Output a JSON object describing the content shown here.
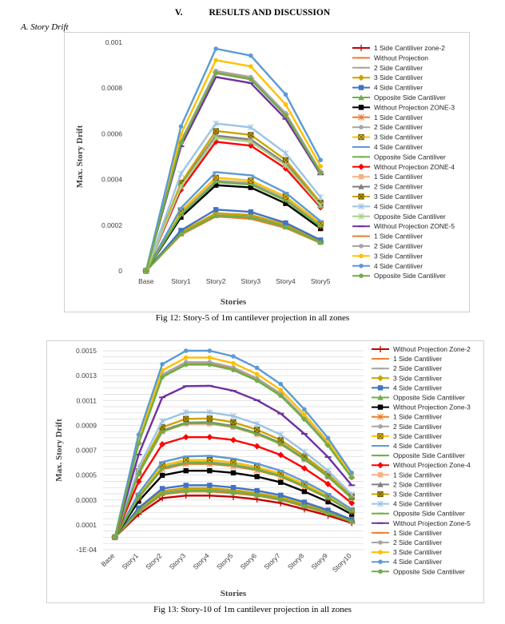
{
  "header": {
    "section_number": "V.",
    "section_title": "RESULTS AND DISCUSSION",
    "subsection": "A.   Story Drift"
  },
  "captions": {
    "fig12": "Fig 12: Story-5 of 1m cantilever projection in all zones",
    "fig13": "Fig 13: Story-10 of 1m cantilever projection in all zones"
  },
  "chart_data": [
    {
      "type": "line",
      "xlabel": "Stories",
      "ylabel": "Max. Story Drift",
      "categories": [
        "Base",
        "Story1",
        "Story2",
        "Story3",
        "Story4",
        "Story5"
      ],
      "yticks": [
        "0",
        "0.0002",
        "0.0004",
        "0.0006",
        "0.0008",
        "0.001"
      ],
      "ylim": [
        0,
        0.001
      ],
      "grid": false,
      "legend_position": "right",
      "series": [
        {
          "name": "1 Side Cantiliver zone-2",
          "color": "#c00000",
          "marker": "plus",
          "values": [
            0,
            0.000165,
            0.000248,
            0.000238,
            0.000195,
            0.000128
          ]
        },
        {
          "name": "Without Projection",
          "color": "#ed7d31",
          "marker": "dash",
          "values": [
            0,
            0.000158,
            0.000238,
            0.000228,
            0.000188,
            0.000122
          ]
        },
        {
          "name": "2 Side Cantiliver",
          "color": "#a5a5a5",
          "marker": "dash",
          "values": [
            0,
            0.000165,
            0.000245,
            0.000236,
            0.000195,
            0.000127
          ]
        },
        {
          "name": "3 Side Cantiliver",
          "color": "#c9a400",
          "marker": "diamond",
          "values": [
            0,
            0.00017,
            0.000252,
            0.000245,
            0.000202,
            0.000131
          ]
        },
        {
          "name": "4 Side Cantiliver",
          "color": "#4472c4",
          "marker": "square",
          "values": [
            0,
            0.000177,
            0.000268,
            0.000258,
            0.00021,
            0.000135
          ]
        },
        {
          "name": "Opposite Side Cantiliver",
          "color": "#70ad47",
          "marker": "triangle",
          "values": [
            0,
            0.000162,
            0.000242,
            0.000234,
            0.000193,
            0.000125
          ]
        },
        {
          "name": "Without Projection ZONE-3",
          "color": "#000000",
          "marker": "square",
          "values": [
            0,
            0.000235,
            0.000375,
            0.000365,
            0.000295,
            0.000185
          ]
        },
        {
          "name": "1 Side Cantiliver",
          "color": "#ed7d31",
          "marker": "star",
          "values": [
            0,
            0.000248,
            0.000395,
            0.000385,
            0.000312,
            0.000197
          ]
        },
        {
          "name": "2 Side Cantiliver",
          "color": "#a5a5a5",
          "marker": "circle",
          "values": [
            0,
            0.000252,
            0.000395,
            0.000385,
            0.000315,
            0.0002
          ]
        },
        {
          "name": "3 Side Cantiliver",
          "color": "#ffc000",
          "marker": "boxx",
          "values": [
            0,
            0.000262,
            0.000408,
            0.000395,
            0.000325,
            0.000208
          ]
        },
        {
          "name": "4 Side Cantiliver",
          "color": "#5b9bd5",
          "marker": "dash",
          "values": [
            0,
            0.000275,
            0.000432,
            0.000418,
            0.000342,
            0.000218
          ]
        },
        {
          "name": "Opposite Side Cantiliver",
          "color": "#70ad47",
          "marker": "dash",
          "values": [
            0,
            0.000245,
            0.000388,
            0.000378,
            0.000308,
            0.000195
          ]
        },
        {
          "name": "Without Projection ZONE-4",
          "color": "#ff0000",
          "marker": "diamond",
          "values": [
            0,
            0.000355,
            0.000565,
            0.000548,
            0.000448,
            0.000278
          ]
        },
        {
          "name": "1 Side Cantiliver",
          "color": "#f4b183",
          "marker": "square",
          "values": [
            0,
            0.000372,
            0.000588,
            0.00057,
            0.000465,
            0.000289
          ]
        },
        {
          "name": "2 Side Cantiliver",
          "color": "#808080",
          "marker": "triangle",
          "values": [
            0,
            0.000375,
            0.000592,
            0.000575,
            0.00047,
            0.000291
          ]
        },
        {
          "name": "3 Side Cantiliver",
          "color": "#c9a400",
          "marker": "boxx",
          "values": [
            0,
            0.000385,
            0.000612,
            0.000595,
            0.000485,
            0.000298
          ]
        },
        {
          "name": "4 Side Cantiliver",
          "color": "#9dc3e6",
          "marker": "star",
          "values": [
            0,
            0.000425,
            0.000645,
            0.000628,
            0.000515,
            0.000322
          ]
        },
        {
          "name": "Opposite Side Cantiliver",
          "color": "#a9d18e",
          "marker": "star",
          "values": [
            0,
            0.000368,
            0.000582,
            0.000565,
            0.000462,
            0.000285
          ]
        },
        {
          "name": "Without Projection ZONE-5",
          "color": "#7030a0",
          "marker": "dash",
          "values": [
            0,
            0.000545,
            0.000848,
            0.000822,
            0.000665,
            0.000422
          ]
        },
        {
          "name": "1 Side Cantiliver",
          "color": "#ed7d31",
          "marker": "dash",
          "values": [
            0,
            0.000565,
            0.00087,
            0.000842,
            0.000685,
            0.000432
          ]
        },
        {
          "name": "2 Side Cantiliver",
          "color": "#a5a5a5",
          "marker": "circle",
          "values": [
            0,
            0.000568,
            0.000875,
            0.000848,
            0.00069,
            0.000435
          ]
        },
        {
          "name": "3 Side Cantiliver",
          "color": "#ffc000",
          "marker": "circle",
          "values": [
            0,
            0.000598,
            0.000922,
            0.000895,
            0.000728,
            0.000458
          ]
        },
        {
          "name": "4 Side Cantiliver",
          "color": "#5b9bd5",
          "marker": "circle",
          "values": [
            0,
            0.000632,
            0.000972,
            0.000942,
            0.000772,
            0.000485
          ]
        },
        {
          "name": "Opposite Side Cantiliver",
          "color": "#70ad47",
          "marker": "circle",
          "values": [
            0,
            0.00056,
            0.000865,
            0.000838,
            0.00068,
            0.000428
          ]
        }
      ]
    },
    {
      "type": "line",
      "xlabel": "Stories",
      "ylabel": "Max. Story Drift",
      "categories": [
        "Base",
        "Story1",
        "Story2",
        "Story3",
        "Story4",
        "Story5",
        "Story6",
        "Story7",
        "Story8",
        "Story9",
        "Story10"
      ],
      "yticks": [
        "-1E-04",
        "0.0001",
        "0.0003",
        "0.0005",
        "0.0007",
        "0.0009",
        "0.0011",
        "0.0013",
        "0.0015"
      ],
      "ylim": [
        -0.0001,
        0.0015
      ],
      "grid": true,
      "legend_position": "right",
      "series": [
        {
          "name": "Without Projection Zone-2",
          "color": "#c00000",
          "marker": "plus",
          "values": [
            0,
            0.000185,
            0.000315,
            0.000335,
            0.000335,
            0.000325,
            0.000305,
            0.000275,
            0.000225,
            0.000175,
            0.000115
          ]
        },
        {
          "name": "1 Side Cantiliver",
          "color": "#ed7d31",
          "marker": "dash",
          "values": [
            0,
            0.000205,
            0.000345,
            0.000368,
            0.000368,
            0.000355,
            0.000335,
            0.0003,
            0.000248,
            0.000192,
            0.000125
          ]
        },
        {
          "name": "2 Side Cantiliver",
          "color": "#a5a5a5",
          "marker": "dash",
          "values": [
            0,
            0.000215,
            0.000358,
            0.000382,
            0.000382,
            0.000368,
            0.000345,
            0.00031,
            0.000258,
            0.0002,
            0.00013
          ]
        },
        {
          "name": "3 Side Cantiliver",
          "color": "#c9a400",
          "marker": "diamond",
          "values": [
            0,
            0.000222,
            0.000372,
            0.000395,
            0.000395,
            0.00038,
            0.000355,
            0.00032,
            0.000265,
            0.000205,
            0.000134
          ]
        },
        {
          "name": "4 Side Cantiliver",
          "color": "#4472c4",
          "marker": "square",
          "values": [
            0,
            0.000235,
            0.000392,
            0.000418,
            0.000418,
            0.0004,
            0.000375,
            0.000338,
            0.000282,
            0.000218,
            0.000142
          ]
        },
        {
          "name": "Opposite Side Cantiliver",
          "color": "#70ad47",
          "marker": "triangle",
          "values": [
            0,
            0.000212,
            0.000352,
            0.000375,
            0.000375,
            0.000362,
            0.00034,
            0.000305,
            0.000252,
            0.000196,
            0.000128
          ]
        },
        {
          "name": "Without Projection Zone-3",
          "color": "#000000",
          "marker": "square",
          "values": [
            0,
            0.00029,
            0.000498,
            0.000535,
            0.000535,
            0.000518,
            0.000488,
            0.000442,
            0.000368,
            0.000285,
            0.000185
          ]
        },
        {
          "name": "1 Side Cantiliver",
          "color": "#ed7d31",
          "marker": "star",
          "values": [
            0,
            0.000318,
            0.000548,
            0.00059,
            0.00059,
            0.000572,
            0.000538,
            0.000488,
            0.000405,
            0.000315,
            0.000205
          ]
        },
        {
          "name": "2 Side Cantiliver",
          "color": "#a5a5a5",
          "marker": "circle",
          "values": [
            0,
            0.000325,
            0.000562,
            0.000605,
            0.000605,
            0.000585,
            0.00055,
            0.000498,
            0.000415,
            0.000322,
            0.00021
          ]
        },
        {
          "name": "3 Side Cantiliver",
          "color": "#ffc000",
          "marker": "boxx",
          "values": [
            0,
            0.000335,
            0.000578,
            0.000622,
            0.000622,
            0.000602,
            0.000565,
            0.000512,
            0.000428,
            0.000332,
            0.000216
          ]
        },
        {
          "name": "4 Side Cantiliver",
          "color": "#5b9bd5",
          "marker": "dash",
          "values": [
            0,
            0.000352,
            0.000605,
            0.00065,
            0.000655,
            0.000632,
            0.000592,
            0.000535,
            0.000448,
            0.000348,
            0.000225
          ]
        },
        {
          "name": "Opposite Side Cantiliver",
          "color": "#70ad47",
          "marker": "dash",
          "values": [
            0,
            0.000322,
            0.000555,
            0.000598,
            0.000598,
            0.00058,
            0.000545,
            0.000492,
            0.00041,
            0.000318,
            0.000206
          ]
        },
        {
          "name": "Without Projection Zone-4",
          "color": "#ff0000",
          "marker": "diamond",
          "values": [
            0,
            0.000448,
            0.000748,
            0.000805,
            0.000805,
            0.000782,
            0.000732,
            0.000662,
            0.000555,
            0.000428,
            0.000275
          ]
        },
        {
          "name": "1 Side Cantiliver",
          "color": "#f4b183",
          "marker": "square",
          "values": [
            0,
            0.000508,
            0.000848,
            0.000912,
            0.000912,
            0.000885,
            0.000828,
            0.000748,
            0.000625,
            0.000485,
            0.000312
          ]
        },
        {
          "name": "2 Side Cantiliver",
          "color": "#808080",
          "marker": "triangle",
          "values": [
            0,
            0.000515,
            0.000858,
            0.000922,
            0.000925,
            0.000895,
            0.000838,
            0.000758,
            0.000632,
            0.000492,
            0.000318
          ]
        },
        {
          "name": "3 Side Cantiliver",
          "color": "#c9a400",
          "marker": "boxx",
          "values": [
            0,
            0.000532,
            0.000885,
            0.000952,
            0.000955,
            0.000925,
            0.000865,
            0.000782,
            0.000652,
            0.000508,
            0.000328
          ]
        },
        {
          "name": "4 Side Cantiliver",
          "color": "#9dc3e6",
          "marker": "star",
          "values": [
            0,
            0.000562,
            0.000935,
            0.001005,
            0.001005,
            0.000975,
            0.000912,
            0.000825,
            0.000688,
            0.000535,
            0.000345
          ]
        },
        {
          "name": "Opposite Side Cantiliver",
          "color": "#70ad47",
          "marker": "dash",
          "values": [
            0,
            0.000512,
            0.000852,
            0.000915,
            0.000918,
            0.000888,
            0.000832,
            0.000752,
            0.000628,
            0.000488,
            0.000315
          ]
        },
        {
          "name": "Without Projection Zone-5",
          "color": "#7030a0",
          "marker": "dash",
          "values": [
            0,
            0.000665,
            0.001125,
            0.001215,
            0.001218,
            0.001178,
            0.001102,
            0.000995,
            0.000832,
            0.000645,
            0.000418
          ]
        },
        {
          "name": "1 Side Cantiliver",
          "color": "#ed7d31",
          "marker": "dash",
          "values": [
            0,
            0.000755,
            0.001298,
            0.001398,
            0.001398,
            0.001355,
            0.001268,
            0.001145,
            0.000955,
            0.000742,
            0.00048
          ]
        },
        {
          "name": "2 Side Cantiliver",
          "color": "#a5a5a5",
          "marker": "circle",
          "values": [
            0,
            0.000762,
            0.001308,
            0.001408,
            0.001408,
            0.001365,
            0.001278,
            0.001155,
            0.000962,
            0.000748,
            0.000485
          ]
        },
        {
          "name": "3 Side Cantiliver",
          "color": "#ffc000",
          "marker": "circle",
          "values": [
            0,
            0.000792,
            0.001342,
            0.001445,
            0.001445,
            0.0014,
            0.001312,
            0.001185,
            0.000988,
            0.000768,
            0.000498
          ]
        },
        {
          "name": "4 Side Cantiliver",
          "color": "#5b9bd5",
          "marker": "circle",
          "values": [
            0,
            0.000825,
            0.001392,
            0.0015,
            0.0015,
            0.001455,
            0.001362,
            0.001232,
            0.001028,
            0.000798,
            0.000518
          ]
        },
        {
          "name": "Opposite Side Cantiliver",
          "color": "#70ad47",
          "marker": "circle",
          "values": [
            0,
            0.000752,
            0.001288,
            0.001388,
            0.001388,
            0.001345,
            0.00126,
            0.001138,
            0.000948,
            0.000738,
            0.000478
          ]
        }
      ]
    }
  ]
}
